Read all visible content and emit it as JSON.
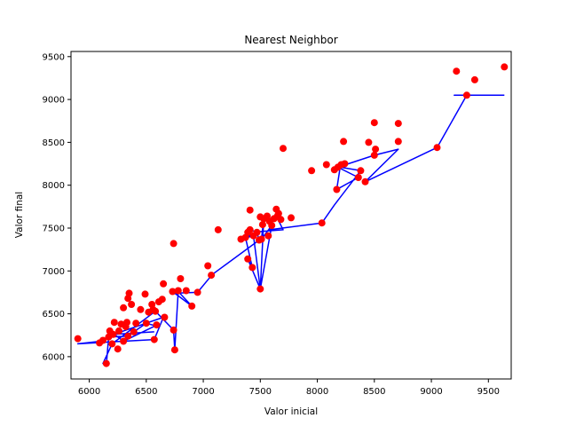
{
  "chart_data": {
    "type": "scatter",
    "title": "Nearest Neighbor",
    "xlabel": "Valor inicial",
    "ylabel": "Valor final",
    "xlim": [
      5840,
      9700
    ],
    "ylim": [
      5740,
      9560
    ],
    "xticks": [
      6000,
      6500,
      7000,
      7500,
      8000,
      8500,
      9000,
      9500
    ],
    "yticks": [
      6000,
      6500,
      7000,
      7500,
      8000,
      8500,
      9000,
      9500
    ],
    "grid": false,
    "legend": "none",
    "colors": {
      "points": "#ff0000",
      "path": "#0000ff"
    },
    "series": [
      {
        "type": "scatter",
        "points": [
          [
            5900,
            6210
          ],
          [
            6090,
            6160
          ],
          [
            6120,
            6190
          ],
          [
            6150,
            5920
          ],
          [
            6170,
            6230
          ],
          [
            6180,
            6300
          ],
          [
            6200,
            6150
          ],
          [
            6210,
            6260
          ],
          [
            6220,
            6400
          ],
          [
            6250,
            6090
          ],
          [
            6260,
            6300
          ],
          [
            6280,
            6380
          ],
          [
            6300,
            6180
          ],
          [
            6300,
            6570
          ],
          [
            6320,
            6350
          ],
          [
            6330,
            6400
          ],
          [
            6340,
            6240
          ],
          [
            6340,
            6680
          ],
          [
            6350,
            6740
          ],
          [
            6370,
            6610
          ],
          [
            6390,
            6290
          ],
          [
            6410,
            6390
          ],
          [
            6450,
            6550
          ],
          [
            6490,
            6730
          ],
          [
            6500,
            6390
          ],
          [
            6520,
            6520
          ],
          [
            6550,
            6610
          ],
          [
            6560,
            6550
          ],
          [
            6570,
            6200
          ],
          [
            6580,
            6530
          ],
          [
            6590,
            6370
          ],
          [
            6610,
            6640
          ],
          [
            6640,
            6670
          ],
          [
            6650,
            6850
          ],
          [
            6660,
            6460
          ],
          [
            6730,
            6760
          ],
          [
            6740,
            7320
          ],
          [
            6740,
            6310
          ],
          [
            6750,
            6080
          ],
          [
            6780,
            6770
          ],
          [
            6800,
            6910
          ],
          [
            6850,
            6770
          ],
          [
            6900,
            6590
          ],
          [
            6950,
            6750
          ],
          [
            7040,
            7060
          ],
          [
            7070,
            6950
          ],
          [
            7130,
            7480
          ],
          [
            7330,
            7370
          ],
          [
            7370,
            7390
          ],
          [
            7390,
            7140
          ],
          [
            7390,
            7450
          ],
          [
            7410,
            7480
          ],
          [
            7410,
            7710
          ],
          [
            7430,
            7040
          ],
          [
            7440,
            7410
          ],
          [
            7470,
            7450
          ],
          [
            7490,
            7360
          ],
          [
            7500,
            6790
          ],
          [
            7500,
            7630
          ],
          [
            7510,
            7370
          ],
          [
            7520,
            7540
          ],
          [
            7530,
            7610
          ],
          [
            7560,
            7640
          ],
          [
            7570,
            7410
          ],
          [
            7580,
            7580
          ],
          [
            7600,
            7530
          ],
          [
            7620,
            7610
          ],
          [
            7640,
            7720
          ],
          [
            7650,
            7640
          ],
          [
            7660,
            7670
          ],
          [
            7680,
            7600
          ],
          [
            7700,
            8430
          ],
          [
            7770,
            7620
          ],
          [
            7950,
            8170
          ],
          [
            8040,
            7560
          ],
          [
            8080,
            8240
          ],
          [
            8150,
            8180
          ],
          [
            8170,
            7950
          ],
          [
            8180,
            8210
          ],
          [
            8210,
            8240
          ],
          [
            8230,
            8510
          ],
          [
            8240,
            8250
          ],
          [
            8360,
            8090
          ],
          [
            8380,
            8170
          ],
          [
            8420,
            8040
          ],
          [
            8450,
            8500
          ],
          [
            8500,
            8730
          ],
          [
            8500,
            8350
          ],
          [
            8510,
            8420
          ],
          [
            8710,
            8510
          ],
          [
            8710,
            8720
          ],
          [
            9050,
            8440
          ],
          [
            9220,
            9330
          ],
          [
            9310,
            9050
          ],
          [
            9380,
            9230
          ],
          [
            9640,
            9380
          ]
        ]
      },
      {
        "type": "line",
        "points": [
          [
            9640,
            9050
          ],
          [
            9200,
            9050
          ],
          [
            9310,
            9050
          ],
          [
            9050,
            8440
          ],
          [
            8420,
            8040
          ],
          [
            8710,
            8420
          ],
          [
            8500,
            8350
          ],
          [
            8180,
            8210
          ],
          [
            8360,
            8090
          ],
          [
            8170,
            7950
          ],
          [
            8200,
            8210
          ],
          [
            8380,
            8170
          ],
          [
            8150,
            7770
          ],
          [
            8040,
            7560
          ],
          [
            7580,
            7480
          ],
          [
            7590,
            7580
          ],
          [
            7620,
            7610
          ],
          [
            7640,
            7640
          ],
          [
            7700,
            7480
          ],
          [
            7500,
            7460
          ],
          [
            7330,
            7370
          ],
          [
            7440,
            7410
          ],
          [
            7500,
            6790
          ],
          [
            7530,
            7610
          ],
          [
            7510,
            7370
          ],
          [
            7600,
            7530
          ],
          [
            7500,
            6790
          ],
          [
            7390,
            7140
          ],
          [
            7430,
            7040
          ],
          [
            7370,
            7390
          ],
          [
            7410,
            7480
          ],
          [
            7470,
            7450
          ],
          [
            7490,
            7360
          ],
          [
            7080,
            6960
          ],
          [
            6950,
            6750
          ],
          [
            6750,
            6740
          ],
          [
            6900,
            6590
          ],
          [
            6780,
            6760
          ],
          [
            6750,
            6080
          ],
          [
            6740,
            6310
          ],
          [
            6580,
            6530
          ],
          [
            6200,
            6150
          ],
          [
            6120,
            5920
          ],
          [
            6150,
            5900
          ],
          [
            6170,
            6230
          ],
          [
            6340,
            6240
          ],
          [
            6390,
            6290
          ],
          [
            6500,
            6390
          ],
          [
            6580,
            6360
          ],
          [
            6300,
            6180
          ],
          [
            5900,
            6150
          ],
          [
            6100,
            6180
          ],
          [
            6300,
            6300
          ],
          [
            6650,
            6460
          ],
          [
            6570,
            6200
          ],
          [
            6300,
            6180
          ],
          [
            6180,
            6300
          ],
          [
            6210,
            6260
          ],
          [
            6570,
            6290
          ]
        ]
      }
    ]
  }
}
